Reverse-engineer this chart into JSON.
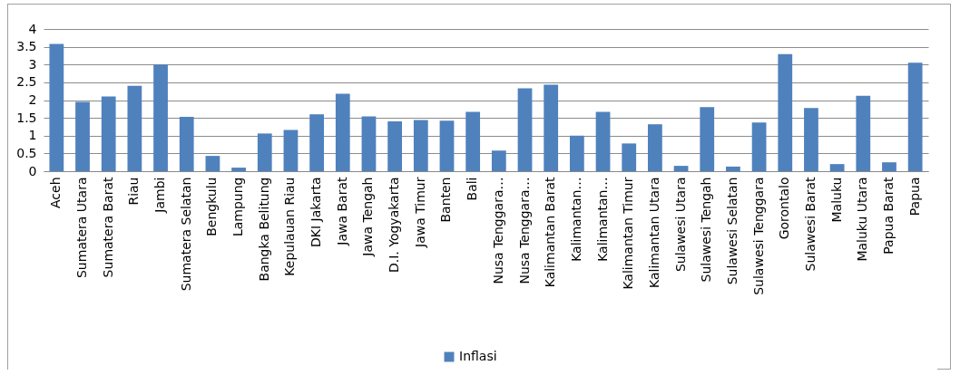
{
  "chart_data": {
    "type": "bar",
    "categories": [
      "Aceh",
      "Sumatera Utara",
      "Sumatera Barat",
      "Riau",
      "Jambi",
      "Sumatera Selatan",
      "Bengkulu",
      "Lampung",
      "Bangka Belitung",
      "Kepulauan Riau",
      "DKI Jakarta",
      "Jawa Barat",
      "Jawa Tengah",
      "D.I. Yogyakarta",
      "Jawa Timur",
      "Banten",
      "Bali",
      "Nusa Tenggara…",
      "Nusa Tenggara…",
      "Kalimantan Barat",
      "Kalimantan…",
      "Kalimantan…",
      "Kalimantan Timur",
      "Kalimantan Utara",
      "Sulawesi Utara",
      "Sulawesi Tengah",
      "Sulawesi Selatan",
      "Sulawesi Tenggara",
      "Gorontalo",
      "Sulawesi Barat",
      "Maluku",
      "Maluku Utara",
      "Papua Barat",
      "Papua"
    ],
    "series": [
      {
        "name": "Inflasi",
        "color": "#4f81bd",
        "values": [
          3.58,
          1.95,
          2.1,
          2.4,
          3.0,
          1.53,
          0.43,
          0.1,
          1.06,
          1.16,
          1.6,
          2.18,
          1.54,
          1.4,
          1.44,
          1.42,
          1.67,
          0.58,
          2.33,
          2.43,
          1.0,
          1.67,
          0.78,
          1.32,
          0.15,
          1.8,
          0.13,
          1.37,
          3.29,
          1.78,
          0.2,
          2.12,
          0.25,
          3.05
        ]
      }
    ],
    "ylim": [
      0,
      4
    ],
    "yticks": [
      0,
      0.5,
      1,
      1.5,
      2,
      2.5,
      3,
      3.5,
      4
    ],
    "grid": "y",
    "legend": "bottom"
  }
}
